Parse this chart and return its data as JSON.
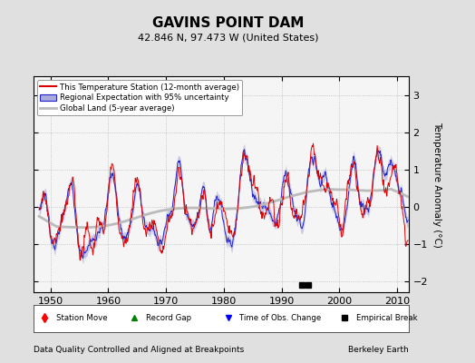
{
  "title": "GAVINS POINT DAM",
  "subtitle": "42.846 N, 97.473 W (United States)",
  "footer_left": "Data Quality Controlled and Aligned at Breakpoints",
  "footer_right": "Berkeley Earth",
  "xlim": [
    1947,
    2012
  ],
  "ylim": [
    -2.3,
    3.5
  ],
  "yticks": [
    -2,
    -1,
    0,
    1,
    2,
    3
  ],
  "xticks": [
    1950,
    1960,
    1970,
    1980,
    1990,
    2000,
    2010
  ],
  "ylabel": "Temperature Anomaly (°C)",
  "bg_color": "#e0e0e0",
  "plot_bg_color": "#f5f5f5",
  "station_color": "#dd0000",
  "regional_color": "#2222cc",
  "regional_fill": "#aaaadd",
  "global_color": "#bbbbbb",
  "legend_station": "This Temperature Station (12-month average)",
  "legend_regional": "Regional Expectation with 95% uncertainty",
  "legend_global": "Global Land (5-year average)",
  "empirical_breaks": [
    1993.5,
    1994.7
  ]
}
